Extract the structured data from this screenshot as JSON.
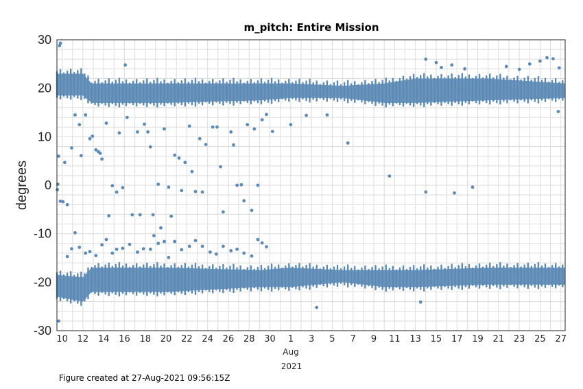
{
  "chart_data": {
    "type": "scatter",
    "title": "m_pitch: Entire Mission",
    "ylabel": "degrees",
    "xlabel": "",
    "ylim": [
      -30,
      30
    ],
    "xlim": [
      "2021-07-09 12:00",
      "2021-08-27 09:56"
    ],
    "grid": true,
    "marker_color": "#5b8ab5",
    "yticks": [
      "30",
      "20",
      "10",
      "0",
      "-10",
      "-20",
      "-30"
    ],
    "xticks": [
      {
        "date": "2021-07-10",
        "label": "10"
      },
      {
        "date": "2021-07-12",
        "label": "12"
      },
      {
        "date": "2021-07-14",
        "label": "14"
      },
      {
        "date": "2021-07-16",
        "label": "16"
      },
      {
        "date": "2021-07-18",
        "label": "18"
      },
      {
        "date": "2021-07-20",
        "label": "20"
      },
      {
        "date": "2021-07-22",
        "label": "22"
      },
      {
        "date": "2021-07-24",
        "label": "24"
      },
      {
        "date": "2021-07-26",
        "label": "26"
      },
      {
        "date": "2021-07-28",
        "label": "28"
      },
      {
        "date": "2021-07-30",
        "label": "30"
      },
      {
        "date": "2021-08-01",
        "label": "1"
      },
      {
        "date": "2021-08-03",
        "label": "3"
      },
      {
        "date": "2021-08-05",
        "label": "5"
      },
      {
        "date": "2021-08-07",
        "label": "7"
      },
      {
        "date": "2021-08-09",
        "label": "9"
      },
      {
        "date": "2021-08-11",
        "label": "11"
      },
      {
        "date": "2021-08-13",
        "label": "13"
      },
      {
        "date": "2021-08-15",
        "label": "15"
      },
      {
        "date": "2021-08-17",
        "label": "17"
      },
      {
        "date": "2021-08-19",
        "label": "19"
      },
      {
        "date": "2021-08-21",
        "label": "21"
      },
      {
        "date": "2021-08-23",
        "label": "23"
      },
      {
        "date": "2021-08-25",
        "label": "25"
      },
      {
        "date": "2021-08-27",
        "label": "27"
      }
    ],
    "xtick_sublabel_month": "Aug",
    "xtick_sublabel_year": "2021",
    "upper_band": [
      {
        "x": "2021-07-09 12:00",
        "ylow": 18.5,
        "yhigh": 23
      },
      {
        "x": "2021-07-12 00:00",
        "ylow": 18.5,
        "yhigh": 23
      },
      {
        "x": "2021-07-12 20:00",
        "ylow": 17,
        "yhigh": 21
      },
      {
        "x": "2021-07-20 00:00",
        "ylow": 17,
        "yhigh": 21
      },
      {
        "x": "2021-07-29 00:00",
        "ylow": 17.5,
        "yhigh": 21
      },
      {
        "x": "2021-08-01 00:00",
        "ylow": 18,
        "yhigh": 21
      },
      {
        "x": "2021-08-06 00:00",
        "ylow": 18,
        "yhigh": 20.5
      },
      {
        "x": "2021-08-10 00:00",
        "ylow": 17,
        "yhigh": 21
      },
      {
        "x": "2021-08-13 00:00",
        "ylow": 17,
        "yhigh": 22
      },
      {
        "x": "2021-08-20 00:00",
        "ylow": 17.5,
        "yhigh": 22
      },
      {
        "x": "2021-08-27 09:00",
        "ylow": 18,
        "yhigh": 21
      }
    ],
    "lower_band": [
      {
        "x": "2021-07-09 12:00",
        "ylow": -23,
        "yhigh": -18.5
      },
      {
        "x": "2021-07-12 00:00",
        "ylow": -24,
        "yhigh": -19
      },
      {
        "x": "2021-07-12 20:00",
        "ylow": -22,
        "yhigh": -17
      },
      {
        "x": "2021-07-20 00:00",
        "ylow": -22,
        "yhigh": -17
      },
      {
        "x": "2021-07-29 00:00",
        "ylow": -21,
        "yhigh": -17.5
      },
      {
        "x": "2021-08-01 00:00",
        "ylow": -21,
        "yhigh": -17
      },
      {
        "x": "2021-08-06 00:00",
        "ylow": -20,
        "yhigh": -17.5
      },
      {
        "x": "2021-08-10 00:00",
        "ylow": -21,
        "yhigh": -17.5
      },
      {
        "x": "2021-08-13 00:00",
        "ylow": -21,
        "yhigh": -17.5
      },
      {
        "x": "2021-08-20 00:00",
        "ylow": -20.5,
        "yhigh": -17
      },
      {
        "x": "2021-08-27 09:00",
        "ylow": -20.5,
        "yhigh": -17
      }
    ],
    "points": [
      {
        "x": "2021-07-09 18:00",
        "y": 28.8
      },
      {
        "x": "2021-07-09 20:00",
        "y": 29.3
      },
      {
        "x": "2021-07-09 16:00",
        "y": 6.0
      },
      {
        "x": "2021-07-10 06:00",
        "y": 4.7
      },
      {
        "x": "2021-07-09 20:00",
        "y": -3.3
      },
      {
        "x": "2021-07-10 02:00",
        "y": -3.4
      },
      {
        "x": "2021-07-10 12:00",
        "y": -4.0
      },
      {
        "x": "2021-07-09 14:00",
        "y": 0.2
      },
      {
        "x": "2021-07-09 13:00",
        "y": -0.9
      },
      {
        "x": "2021-07-10 22:00",
        "y": 7.7
      },
      {
        "x": "2021-07-11 06:00",
        "y": 14.5
      },
      {
        "x": "2021-07-11 16:00",
        "y": 12.5
      },
      {
        "x": "2021-07-11 20:00",
        "y": 6.1
      },
      {
        "x": "2021-07-12 06:00",
        "y": 14.5
      },
      {
        "x": "2021-07-12 16:00",
        "y": 9.6
      },
      {
        "x": "2021-07-12 22:00",
        "y": 10.1
      },
      {
        "x": "2021-07-13 06:00",
        "y": 7.3
      },
      {
        "x": "2021-07-13 12:00",
        "y": 6.9
      },
      {
        "x": "2021-07-13 20:00",
        "y": 5.4
      },
      {
        "x": "2021-07-13 16:00",
        "y": 6.6
      },
      {
        "x": "2021-07-14 06:00",
        "y": 12.8
      },
      {
        "x": "2021-07-14 12:00",
        "y": -6.3
      },
      {
        "x": "2021-07-14 20:00",
        "y": -0.1
      },
      {
        "x": "2021-07-15 06:00",
        "y": -1.4
      },
      {
        "x": "2021-07-15 12:00",
        "y": 10.8
      },
      {
        "x": "2021-07-15 20:00",
        "y": -0.5
      },
      {
        "x": "2021-07-16 02:00",
        "y": 24.8
      },
      {
        "x": "2021-07-16 06:00",
        "y": 14.0
      },
      {
        "x": "2021-07-16 18:00",
        "y": -6.1
      },
      {
        "x": "2021-07-17 06:00",
        "y": 11.0
      },
      {
        "x": "2021-07-17 12:00",
        "y": -6.1
      },
      {
        "x": "2021-07-17 22:00",
        "y": 12.6
      },
      {
        "x": "2021-07-18 06:00",
        "y": 11.0
      },
      {
        "x": "2021-07-18 12:00",
        "y": 7.9
      },
      {
        "x": "2021-07-18 18:00",
        "y": -6.1
      },
      {
        "x": "2021-07-19 06:00",
        "y": 0.2
      },
      {
        "x": "2021-07-19 12:00",
        "y": -8.8
      },
      {
        "x": "2021-07-19 20:00",
        "y": 11.6
      },
      {
        "x": "2021-07-20 06:00",
        "y": -0.4
      },
      {
        "x": "2021-07-20 12:00",
        "y": -6.4
      },
      {
        "x": "2021-07-20 20:00",
        "y": 6.2
      },
      {
        "x": "2021-07-21 06:00",
        "y": 5.6
      },
      {
        "x": "2021-07-21 12:00",
        "y": -1.1
      },
      {
        "x": "2021-07-21 20:00",
        "y": 4.7
      },
      {
        "x": "2021-07-22 06:00",
        "y": 12.2
      },
      {
        "x": "2021-07-22 12:00",
        "y": 2.8
      },
      {
        "x": "2021-07-22 20:00",
        "y": -1.3
      },
      {
        "x": "2021-07-23 06:00",
        "y": 9.6
      },
      {
        "x": "2021-07-23 12:00",
        "y": -1.4
      },
      {
        "x": "2021-07-23 20:00",
        "y": 8.4
      },
      {
        "x": "2021-07-24 12:00",
        "y": 12.0
      },
      {
        "x": "2021-07-24 22:00",
        "y": 12.0
      },
      {
        "x": "2021-07-25 06:00",
        "y": 3.8
      },
      {
        "x": "2021-07-25 12:00",
        "y": -5.5
      },
      {
        "x": "2021-07-26 06:00",
        "y": 11.0
      },
      {
        "x": "2021-07-26 12:00",
        "y": 8.3
      },
      {
        "x": "2021-07-26 20:00",
        "y": 0.0
      },
      {
        "x": "2021-07-27 06:00",
        "y": 0.1
      },
      {
        "x": "2021-07-27 12:00",
        "y": -3.2
      },
      {
        "x": "2021-07-27 20:00",
        "y": 12.5
      },
      {
        "x": "2021-07-28 06:00",
        "y": -5.2
      },
      {
        "x": "2021-07-28 12:00",
        "y": 11.6
      },
      {
        "x": "2021-07-28 20:00",
        "y": 0.0
      },
      {
        "x": "2021-07-29 06:00",
        "y": 13.5
      },
      {
        "x": "2021-07-29 16:00",
        "y": 14.6
      },
      {
        "x": "2021-07-30 06:00",
        "y": 11.1
      },
      {
        "x": "2021-08-01 00:00",
        "y": 12.5
      },
      {
        "x": "2021-08-06 12:00",
        "y": 8.7
      },
      {
        "x": "2021-08-10 12:00",
        "y": 1.9
      },
      {
        "x": "2021-08-14 00:00",
        "y": -1.4
      },
      {
        "x": "2021-08-16 18:00",
        "y": -1.6
      },
      {
        "x": "2021-08-18 12:00",
        "y": -0.4
      },
      {
        "x": "2021-07-09 16:00",
        "y": -28.0
      },
      {
        "x": "2021-07-10 12:00",
        "y": -14.7
      },
      {
        "x": "2021-07-10 22:00",
        "y": -13.1
      },
      {
        "x": "2021-07-11 06:00",
        "y": -9.8
      },
      {
        "x": "2021-07-11 16:00",
        "y": -12.8
      },
      {
        "x": "2021-07-12 06:00",
        "y": -14.0
      },
      {
        "x": "2021-07-12 16:00",
        "y": -13.7
      },
      {
        "x": "2021-07-13 06:00",
        "y": -14.5
      },
      {
        "x": "2021-07-13 20:00",
        "y": -12.3
      },
      {
        "x": "2021-07-14 06:00",
        "y": -11.2
      },
      {
        "x": "2021-07-14 20:00",
        "y": -14.0
      },
      {
        "x": "2021-07-15 06:00",
        "y": -13.2
      },
      {
        "x": "2021-07-15 20:00",
        "y": -13.0
      },
      {
        "x": "2021-07-16 12:00",
        "y": -12.2
      },
      {
        "x": "2021-07-17 06:00",
        "y": -13.8
      },
      {
        "x": "2021-07-17 20:00",
        "y": -13.1
      },
      {
        "x": "2021-07-18 12:00",
        "y": -13.2
      },
      {
        "x": "2021-07-18 20:00",
        "y": -10.4
      },
      {
        "x": "2021-07-19 06:00",
        "y": -12.0
      },
      {
        "x": "2021-07-19 20:00",
        "y": -11.6
      },
      {
        "x": "2021-07-20 06:00",
        "y": -14.9
      },
      {
        "x": "2021-07-20 20:00",
        "y": -11.6
      },
      {
        "x": "2021-07-21 12:00",
        "y": -13.3
      },
      {
        "x": "2021-07-22 06:00",
        "y": -12.6
      },
      {
        "x": "2021-07-22 20:00",
        "y": -11.4
      },
      {
        "x": "2021-07-23 12:00",
        "y": -12.6
      },
      {
        "x": "2021-07-24 06:00",
        "y": -13.8
      },
      {
        "x": "2021-07-24 20:00",
        "y": -14.2
      },
      {
        "x": "2021-07-25 12:00",
        "y": -12.6
      },
      {
        "x": "2021-07-26 06:00",
        "y": -13.5
      },
      {
        "x": "2021-07-26 20:00",
        "y": -13.2
      },
      {
        "x": "2021-07-27 12:00",
        "y": -14.0
      },
      {
        "x": "2021-07-28 06:00",
        "y": -14.6
      },
      {
        "x": "2021-07-28 20:00",
        "y": -11.2
      },
      {
        "x": "2021-07-29 06:00",
        "y": -11.9
      },
      {
        "x": "2021-07-29 16:00",
        "y": -12.7
      },
      {
        "x": "2021-08-03 12:00",
        "y": -25.2
      },
      {
        "x": "2021-08-13 12:00",
        "y": -24.1
      },
      {
        "x": "2021-08-14 00:00",
        "y": 26.0
      },
      {
        "x": "2021-08-15 00:00",
        "y": 25.3
      },
      {
        "x": "2021-08-15 12:00",
        "y": 24.3
      },
      {
        "x": "2021-08-16 12:00",
        "y": 24.8
      },
      {
        "x": "2021-08-17 18:00",
        "y": 24.0
      },
      {
        "x": "2021-08-21 18:00",
        "y": 24.5
      },
      {
        "x": "2021-08-23 00:00",
        "y": 23.9
      },
      {
        "x": "2021-08-24 00:00",
        "y": 25.0
      },
      {
        "x": "2021-08-25 00:00",
        "y": 25.6
      },
      {
        "x": "2021-08-25 16:00",
        "y": 26.3
      },
      {
        "x": "2021-08-26 06:00",
        "y": 26.1
      },
      {
        "x": "2021-08-26 20:00",
        "y": 24.2
      },
      {
        "x": "2021-08-26 18:00",
        "y": 15.2
      },
      {
        "x": "2021-08-02 12:00",
        "y": 14.4
      },
      {
        "x": "2021-08-04 12:00",
        "y": 14.5
      }
    ]
  },
  "footer": {
    "created_text": "Figure created at 27-Aug-2021 09:56:15Z"
  }
}
